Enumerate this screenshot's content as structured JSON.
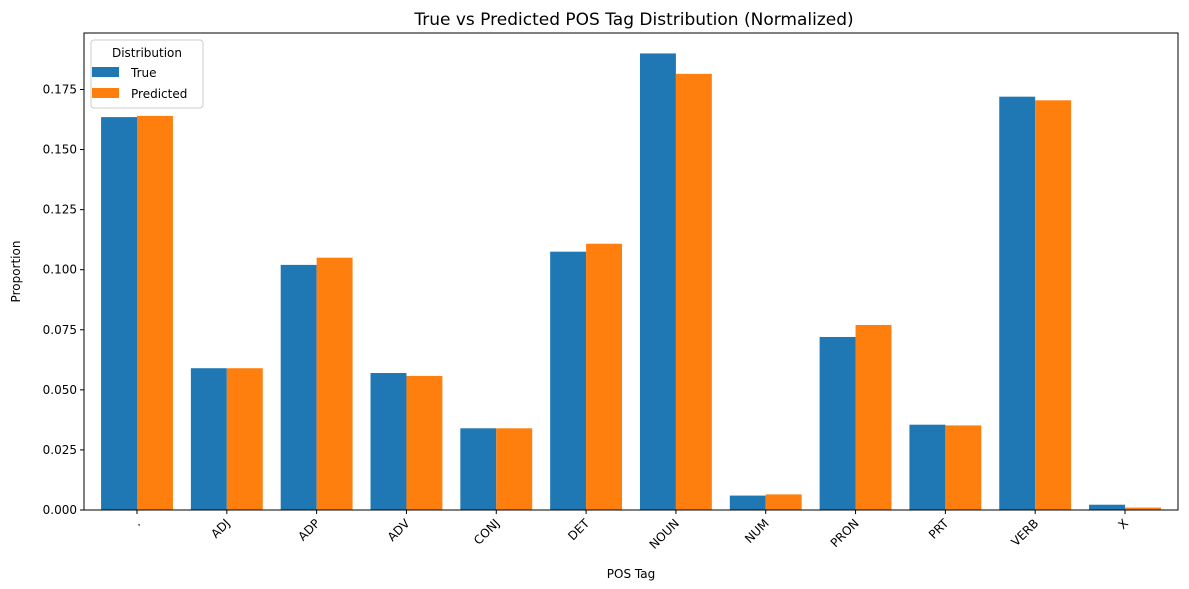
{
  "chart_data": {
    "type": "bar",
    "title": "True vs Predicted POS Tag Distribution (Normalized)",
    "xlabel": "POS Tag",
    "ylabel": "Proportion",
    "ylim": [
      0,
      0.1985
    ],
    "yticks": [
      "0.000",
      "0.025",
      "0.050",
      "0.075",
      "0.100",
      "0.125",
      "0.150",
      "0.175"
    ],
    "categories": [
      ".",
      "ADJ",
      "ADP",
      "ADV",
      "CONJ",
      "DET",
      "NOUN",
      "NUM",
      "PRON",
      "PRT",
      "VERB",
      "X"
    ],
    "series": [
      {
        "name": "True",
        "color": "#1f77b4",
        "values": [
          0.1635,
          0.059,
          0.102,
          0.057,
          0.034,
          0.1075,
          0.19,
          0.006,
          0.072,
          0.0355,
          0.172,
          0.0022
        ]
      },
      {
        "name": "Predicted",
        "color": "#ff7f0e",
        "values": [
          0.164,
          0.059,
          0.105,
          0.0558,
          0.034,
          0.1108,
          0.1815,
          0.0065,
          0.077,
          0.0352,
          0.1705,
          0.001
        ]
      }
    ],
    "legend": {
      "title": "Distribution",
      "position": "upper-left"
    },
    "grid": false
  }
}
